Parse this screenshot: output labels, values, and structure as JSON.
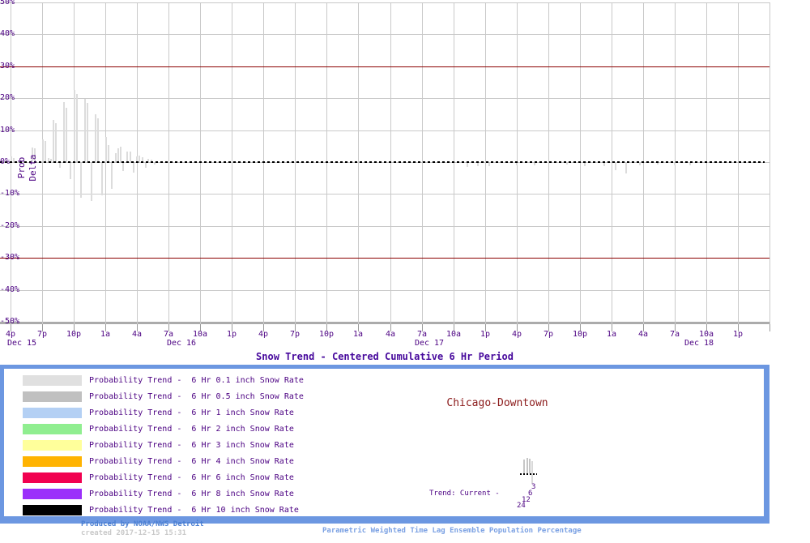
{
  "chart_data": {
    "type": "bar",
    "title": "Snow Trend - Centered Cumulative 6 Hr Period",
    "ylabel": "Prob Delta",
    "ylim": [
      -50,
      50
    ],
    "y_ticks": [
      50,
      40,
      30,
      20,
      10,
      0,
      -10,
      -20,
      -30,
      -40,
      -50
    ],
    "y_tick_labels": [
      "50%",
      "40%",
      "30%",
      "20%",
      "10%",
      "0%",
      "-10%",
      "-20%",
      "-30%",
      "-40%",
      "-50%"
    ],
    "x_hours_span": 72,
    "x_tick_interval_hours": 3,
    "x_tick_labels": [
      "4p",
      "7p",
      "10p",
      "1a",
      "4a",
      "7a",
      "10a",
      "1p",
      "4p",
      "7p",
      "10p",
      "1a",
      "4a",
      "7a",
      "10a",
      "1p",
      "4p",
      "7p",
      "10p",
      "1a",
      "4a",
      "7a",
      "10a",
      "1p"
    ],
    "day_labels": [
      {
        "text": "Dec 15",
        "hour": 1.1
      },
      {
        "text": "Dec 16",
        "hour": 16.2
      },
      {
        "text": "Dec 17",
        "hour": 39.7
      },
      {
        "text": "Dec 18",
        "hour": 65.3
      }
    ],
    "grid": true,
    "reference_lines": [
      {
        "value": 30,
        "color": "#8b0000"
      },
      {
        "value": -30,
        "color": "#8b0000"
      }
    ],
    "zero_line": {
      "value": 0,
      "style": "dashed",
      "color": "#000000"
    },
    "series": [
      {
        "name": "Probability Trend - 6 Hr 0.1 inch Snow Rate",
        "color": "#dcdcdc",
        "x_unit": "hours after Dec 15 4pm",
        "points": [
          [
            0.05,
            1.8
          ],
          [
            0.3,
            1.2
          ],
          [
            2.05,
            4.6
          ],
          [
            2.3,
            4.2
          ],
          [
            3.05,
            7.2
          ],
          [
            3.3,
            6.6
          ],
          [
            3.6,
            1.2
          ],
          [
            3.85,
            0.9
          ],
          [
            4.05,
            13.2
          ],
          [
            4.3,
            12.2
          ],
          [
            4.65,
            -1.5
          ],
          [
            5.05,
            18.7
          ],
          [
            5.3,
            17.0
          ],
          [
            5.65,
            -5.0
          ],
          [
            6.05,
            22.5
          ],
          [
            6.3,
            21.2
          ],
          [
            6.65,
            -11.0
          ],
          [
            7.05,
            19.7
          ],
          [
            7.3,
            18.5
          ],
          [
            7.65,
            -12.0
          ],
          [
            8.05,
            15.0
          ],
          [
            8.3,
            13.8
          ],
          [
            8.65,
            -10.2
          ],
          [
            9.05,
            7.8
          ],
          [
            9.3,
            5.3
          ],
          [
            9.6,
            -8.0
          ],
          [
            10.0,
            2.8
          ],
          [
            10.2,
            4.4
          ],
          [
            10.45,
            4.8
          ],
          [
            10.7,
            -2.5
          ],
          [
            11.1,
            3.2
          ],
          [
            11.35,
            3.4
          ],
          [
            11.7,
            -3.0
          ],
          [
            12.0,
            1.8
          ],
          [
            12.25,
            2.0
          ],
          [
            12.5,
            1.6
          ],
          [
            12.8,
            -1.5
          ],
          [
            13.1,
            0.9
          ],
          [
            13.35,
            0.7
          ],
          [
            13.7,
            -0.5
          ],
          [
            43.3,
            -1.3
          ],
          [
            44.3,
            -0.9
          ],
          [
            45.4,
            -1.0
          ],
          [
            48.0,
            -0.7
          ],
          [
            49.7,
            -0.8
          ],
          [
            52.8,
            -0.6
          ],
          [
            54.5,
            -0.9
          ],
          [
            56.3,
            -1.1
          ],
          [
            57.4,
            -2.4
          ],
          [
            58.4,
            -3.2
          ],
          [
            59.7,
            -0.8
          ],
          [
            61.4,
            -0.6
          ],
          [
            63.0,
            -0.8
          ],
          [
            64.5,
            -0.7
          ]
        ]
      }
    ]
  },
  "legend": {
    "items": [
      {
        "color": "#e0e0e0",
        "label": "Probability Trend -  6 Hr 0.1 inch Snow Rate"
      },
      {
        "color": "#c0c0c0",
        "label": "Probability Trend -  6 Hr 0.5 inch Snow Rate"
      },
      {
        "color": "#b4d0f4",
        "label": "Probability Trend -  6 Hr 1 inch Snow Rate"
      },
      {
        "color": "#90ee90",
        "label": "Probability Trend -  6 Hr 2 inch Snow Rate"
      },
      {
        "color": "#ffff9b",
        "label": "Probability Trend -  6 Hr 3 inch Snow Rate"
      },
      {
        "color": "#ffb301",
        "label": "Probability Trend -  6 Hr 4 inch Snow Rate"
      },
      {
        "color": "#f10150",
        "label": "Probability Trend -  6 Hr 6 inch Snow Rate"
      },
      {
        "color": "#9b30fa",
        "label": "Probability Trend -  6 Hr 8 inch Snow Rate"
      },
      {
        "color": "#000000",
        "label": "Probability Trend -  6 Hr 10 inch Snow Rate"
      }
    ]
  },
  "station": "Chicago-Downtown",
  "trend": {
    "label": "Trend: Current -",
    "lags": [
      "3",
      "6",
      "12",
      "24"
    ]
  },
  "footer": {
    "produced_by": "Produced by NOAA/NWS Detroit",
    "created": "created 2017-12-15 15:31",
    "caption": "Parametric Weighted Time Lag Ensemble Population Percentage"
  },
  "colors": {
    "axis_text": "#4b0082",
    "title": "#46089c",
    "grid": "#c9c9c9",
    "axis_line": "#ababab",
    "reference_line": "#8b0000",
    "bar": "#dcdcdc",
    "station": "#8b1a1a",
    "legend_border": "#6c97e1",
    "footer_produced": "#4b7fd2",
    "footer_created": "#c9c9c9",
    "footer_caption": "#7ba1e3"
  }
}
